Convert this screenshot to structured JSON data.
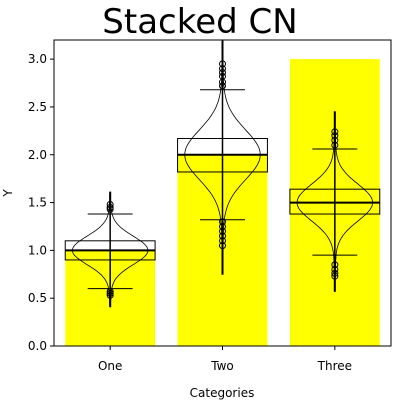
{
  "chart_data": {
    "type": "bar",
    "title": "Stacked CN",
    "xlabel": "Categories",
    "ylabel": "Y",
    "ylim": [
      0,
      3.2
    ],
    "yticks": [
      0.0,
      0.5,
      1.0,
      1.5,
      2.0,
      2.5,
      3.0
    ],
    "ytick_labels": [
      "0.0",
      "0.5",
      "1.0",
      "1.5",
      "2.0",
      "2.5",
      "3.0"
    ],
    "categories": [
      "One",
      "Two",
      "Three"
    ],
    "bar_color": "#ffff00",
    "values": [
      1.0,
      2.0,
      3.0
    ],
    "grid": false,
    "overlays": [
      {
        "category": "One",
        "box_q1": 0.9,
        "box_median": 1.0,
        "box_q3": 1.1,
        "whisker_low": 0.6,
        "whisker_high": 1.38,
        "min": 0.41,
        "max": 1.61,
        "outliers": [
          0.53,
          0.55,
          0.57,
          1.43,
          1.45,
          1.48
        ],
        "violin_width": 0.72
      },
      {
        "category": "Two",
        "box_q1": 1.82,
        "box_median": 2.0,
        "box_q3": 2.17,
        "whisker_low": 1.32,
        "whisker_high": 2.68,
        "min": 0.75,
        "max": 3.2,
        "outliers": [
          1.05,
          1.1,
          1.15,
          1.2,
          1.25,
          1.3,
          2.72,
          2.76,
          2.82,
          2.86,
          2.9,
          2.95
        ],
        "violin_width": 0.72
      },
      {
        "category": "Three",
        "box_q1": 1.38,
        "box_median": 1.5,
        "box_q3": 1.64,
        "whisker_low": 0.95,
        "whisker_high": 2.06,
        "min": 0.57,
        "max": 2.45,
        "outliers": [
          0.73,
          0.76,
          0.8,
          0.85,
          2.1,
          2.15,
          2.2,
          2.24
        ],
        "violin_width": 0.72
      }
    ]
  }
}
